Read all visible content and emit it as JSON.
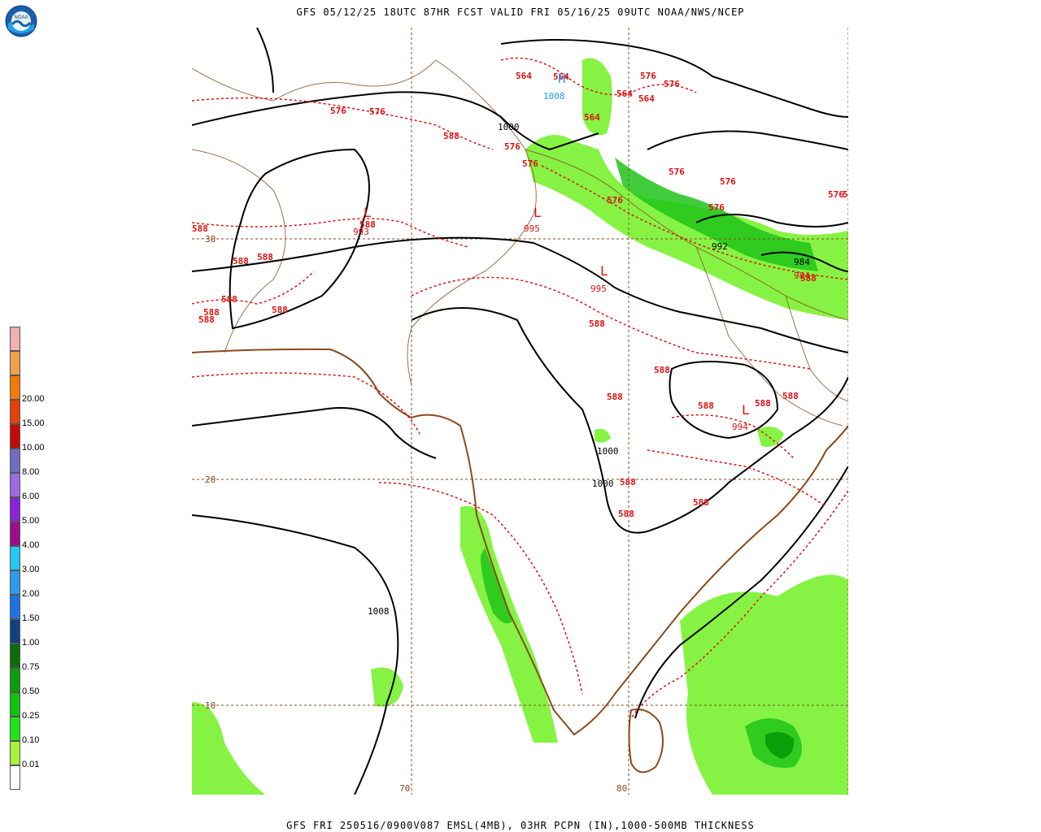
{
  "header": {
    "title": "GFS 05/12/25 18UTC 87HR FCST VALID FRI 05/16/25 09UTC NOAA/NWS/NCEP"
  },
  "footer": {
    "text": "GFS FRI 250516/0900V087 EMSL(4MB), 03HR PCPN (IN),1000-500MB THICKNESS"
  },
  "logo": {
    "icon": "noaa-logo",
    "text": "NOAA"
  },
  "legend": {
    "colors": [
      "#ffffff",
      "#a8f23a",
      "#20e619",
      "#0fc40f",
      "#0a9e0a",
      "#0a6e0a",
      "#11427f",
      "#1f74e0",
      "#2f9ae8",
      "#26c7f0",
      "#9b0d8a",
      "#8a23d6",
      "#9c6be0",
      "#6e6ec0",
      "#c50a0a",
      "#e4420a",
      "#f27a0a",
      "#f2a14a",
      "#f0b0b0"
    ],
    "labels": [
      "0.01",
      "0.10",
      "0.25",
      "0.50",
      "0.75",
      "1.00",
      "1.50",
      "2.00",
      "3.00",
      "4.00",
      "5.00",
      "6.00",
      "8.00",
      "10.00",
      "15.00",
      "20.00"
    ]
  },
  "map": {
    "lat_labels": [
      "30",
      "20",
      "10"
    ],
    "lon_labels": [
      "70",
      "80"
    ],
    "thickness_labels": [
      "564",
      "564",
      "564",
      "564",
      "564",
      "576",
      "576",
      "576",
      "576",
      "576",
      "576",
      "576",
      "576",
      "576",
      "576",
      "576",
      "588",
      "588",
      "588",
      "588",
      "588",
      "588",
      "588",
      "588",
      "588",
      "588",
      "588",
      "588",
      "588",
      "588",
      "588",
      "588",
      "588",
      "588",
      "588",
      "588"
    ],
    "pressure_labels": [
      "1008",
      "1000",
      "992",
      "984",
      "984",
      "1000",
      "1000",
      "1008"
    ],
    "low_centers": [
      {
        "symbol": "L",
        "value": "993"
      },
      {
        "symbol": "L",
        "value": "995"
      },
      {
        "symbol": "L",
        "value": "995"
      },
      {
        "symbol": "L",
        "value": "994"
      }
    ],
    "high_center": {
      "symbol": "H",
      "value": "1008"
    }
  }
}
